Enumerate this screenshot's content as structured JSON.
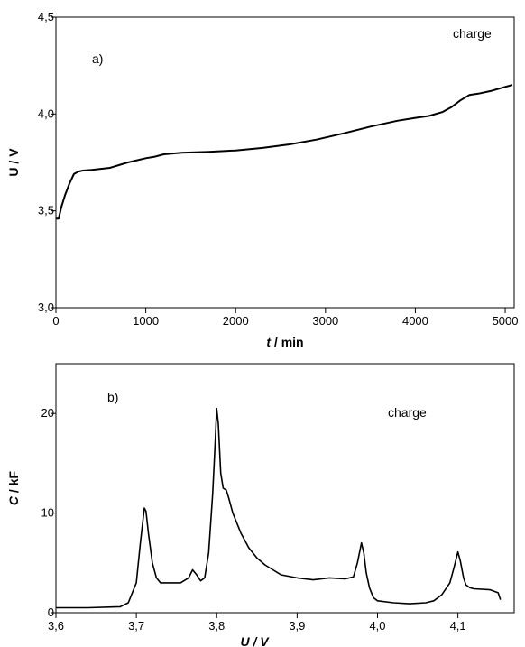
{
  "chart_data": [
    {
      "id": "a",
      "type": "line",
      "panel_label": "a)",
      "annotation": "charge",
      "xlabel_italic": "t",
      "xlabel_rest": " / min",
      "ylabel": "U / V",
      "xlim": [
        0,
        5100
      ],
      "ylim": [
        3.0,
        4.5
      ],
      "xticks": [
        {
          "value": 0,
          "label": "0"
        },
        {
          "value": 1000,
          "label": "1000"
        },
        {
          "value": 2000,
          "label": "2000"
        },
        {
          "value": 3000,
          "label": "3000"
        },
        {
          "value": 4000,
          "label": "4000"
        },
        {
          "value": 5000,
          "label": "5000"
        }
      ],
      "yticks": [
        {
          "value": 3.0,
          "label": "3,0"
        },
        {
          "value": 3.5,
          "label": "3,5"
        },
        {
          "value": 4.0,
          "label": "4,0"
        },
        {
          "value": 4.5,
          "label": "4,5"
        }
      ],
      "grid": false,
      "series": [
        {
          "x": [
            0,
            30,
            60,
            100,
            150,
            200,
            250,
            300,
            400,
            600,
            800,
            1000,
            1100,
            1200,
            1400,
            1700,
            2000,
            2300,
            2600,
            2900,
            3200,
            3500,
            3800,
            4000,
            4150,
            4300,
            4400,
            4500,
            4600,
            4700,
            4850,
            5000,
            5080
          ],
          "y": [
            3.46,
            3.46,
            3.52,
            3.58,
            3.64,
            3.69,
            3.703,
            3.708,
            3.712,
            3.722,
            3.75,
            3.772,
            3.78,
            3.792,
            3.8,
            3.805,
            3.812,
            3.825,
            3.843,
            3.868,
            3.9,
            3.935,
            3.965,
            3.98,
            3.99,
            4.01,
            4.035,
            4.07,
            4.098,
            4.105,
            4.12,
            4.14,
            4.15
          ]
        }
      ]
    },
    {
      "id": "b",
      "type": "line",
      "panel_label": "b)",
      "annotation": "charge",
      "xlabel": "U / V",
      "ylabel_italic": "C",
      "ylabel_rest": " / kF",
      "xlim": [
        3.6,
        4.17
      ],
      "ylim": [
        0,
        25
      ],
      "xticks": [
        {
          "value": 3.6,
          "label": "3,6"
        },
        {
          "value": 3.7,
          "label": "3,7"
        },
        {
          "value": 3.8,
          "label": "3,8"
        },
        {
          "value": 3.9,
          "label": "3,9"
        },
        {
          "value": 4.0,
          "label": "4,0"
        },
        {
          "value": 4.1,
          "label": "4,1"
        }
      ],
      "yticks": [
        {
          "value": 0,
          "label": "0"
        },
        {
          "value": 10,
          "label": "10"
        },
        {
          "value": 20,
          "label": "20"
        }
      ],
      "grid": false,
      "series": [
        {
          "x": [
            3.6,
            3.64,
            3.68,
            3.69,
            3.7,
            3.705,
            3.71,
            3.712,
            3.715,
            3.72,
            3.725,
            3.73,
            3.74,
            3.755,
            3.765,
            3.77,
            3.775,
            3.78,
            3.785,
            3.79,
            3.795,
            3.798,
            3.8,
            3.802,
            3.805,
            3.808,
            3.812,
            3.815,
            3.82,
            3.83,
            3.84,
            3.85,
            3.86,
            3.87,
            3.88,
            3.9,
            3.92,
            3.94,
            3.96,
            3.97,
            3.975,
            3.98,
            3.983,
            3.986,
            3.99,
            3.995,
            4.0,
            4.02,
            4.04,
            4.06,
            4.07,
            4.08,
            4.09,
            4.095,
            4.1,
            4.103,
            4.107,
            4.11,
            4.115,
            4.12,
            4.14,
            4.15,
            4.153
          ],
          "y": [
            0.5,
            0.5,
            0.6,
            1.0,
            3.0,
            7.0,
            10.5,
            10.2,
            8.0,
            5.0,
            3.5,
            3.0,
            3.0,
            3.0,
            3.5,
            4.3,
            3.8,
            3.2,
            3.5,
            6.0,
            12.0,
            17.0,
            20.5,
            19.0,
            14.0,
            12.5,
            12.3,
            11.5,
            10.0,
            8.0,
            6.5,
            5.5,
            4.8,
            4.3,
            3.8,
            3.5,
            3.3,
            3.5,
            3.4,
            3.6,
            5.0,
            7.0,
            6.0,
            4.0,
            2.5,
            1.5,
            1.2,
            1.0,
            0.9,
            1.0,
            1.2,
            1.8,
            3.0,
            4.5,
            6.1,
            5.2,
            3.5,
            2.8,
            2.5,
            2.4,
            2.3,
            2.0,
            1.3
          ]
        }
      ]
    }
  ]
}
